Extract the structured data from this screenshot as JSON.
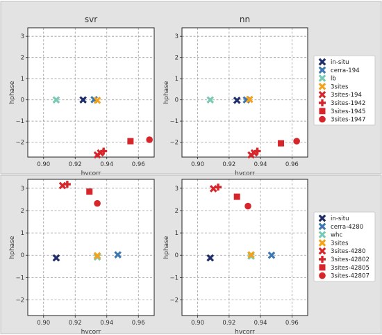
{
  "chart_data": [
    {
      "panel": "top",
      "type": "scatter",
      "xlim": [
        0.89,
        0.97
      ],
      "ylim": [
        -2.7,
        3.4
      ],
      "xticks": [
        0.9,
        0.92,
        0.94,
        0.96
      ],
      "xtick_labels": [
        "0.90",
        "0.92",
        "0.94",
        "0.96"
      ],
      "yticks": [
        -2,
        -1,
        0,
        1,
        2,
        3
      ],
      "ytick_labels": [
        "−2",
        "−1",
        "0",
        "1",
        "2",
        "3"
      ],
      "xlabel": "hvcorr",
      "ylabel": "hphase",
      "grid": true,
      "legend_position": "right",
      "legend": [
        {
          "label": "in-situ",
          "color": "#1f2d6b",
          "marker": "x"
        },
        {
          "label": "cerra-194",
          "color": "#3f78b0",
          "marker": "x"
        },
        {
          "label": "lb",
          "color": "#79c9b4",
          "marker": "x"
        },
        {
          "label": "3sites",
          "color": "#f5a21b",
          "marker": "x"
        },
        {
          "label": "3sites-194",
          "color": "#d7262b",
          "marker": "x"
        },
        {
          "label": "3sites-1942",
          "color": "#d7262b",
          "marker": "plus"
        },
        {
          "label": "3sites-1945",
          "color": "#d7262b",
          "marker": "square"
        },
        {
          "label": "3sites-1947",
          "color": "#d7262b",
          "marker": "circle"
        }
      ],
      "subplots": [
        {
          "title": "svr",
          "points": [
            {
              "series": "in-situ",
              "x": 0.925,
              "y": 0.0
            },
            {
              "series": "cerra-194",
              "x": 0.932,
              "y": 0.01
            },
            {
              "series": "lb",
              "x": 0.908,
              "y": 0.0
            },
            {
              "series": "3sites",
              "x": 0.934,
              "y": -0.02
            },
            {
              "series": "3sites-194",
              "x": 0.936,
              "y": -2.5
            },
            {
              "series": "3sites-194",
              "x": 0.934,
              "y": -2.6
            },
            {
              "series": "3sites-1942",
              "x": 0.938,
              "y": -2.42
            },
            {
              "series": "3sites-1945",
              "x": 0.955,
              "y": -1.95
            },
            {
              "series": "3sites-1947",
              "x": 0.967,
              "y": -1.88
            }
          ]
        },
        {
          "title": "nn",
          "points": [
            {
              "series": "in-situ",
              "x": 0.925,
              "y": -0.02
            },
            {
              "series": "cerra-194",
              "x": 0.931,
              "y": 0.0
            },
            {
              "series": "lb",
              "x": 0.908,
              "y": 0.0
            },
            {
              "series": "3sites",
              "x": 0.933,
              "y": 0.02
            },
            {
              "series": "3sites-194",
              "x": 0.936,
              "y": -2.5
            },
            {
              "series": "3sites-194",
              "x": 0.934,
              "y": -2.6
            },
            {
              "series": "3sites-1942",
              "x": 0.938,
              "y": -2.42
            },
            {
              "series": "3sites-1945",
              "x": 0.953,
              "y": -2.05
            },
            {
              "series": "3sites-1947",
              "x": 0.963,
              "y": -1.95
            }
          ]
        }
      ]
    },
    {
      "panel": "bottom",
      "type": "scatter",
      "xlim": [
        0.89,
        0.97
      ],
      "ylim": [
        -2.7,
        3.4
      ],
      "xticks": [
        0.9,
        0.92,
        0.94,
        0.96
      ],
      "xtick_labels": [
        "0.90",
        "0.92",
        "0.94",
        "0.96"
      ],
      "yticks": [
        -2,
        -1,
        0,
        1,
        2,
        3
      ],
      "ytick_labels": [
        "−2",
        "−1",
        "0",
        "1",
        "2",
        "3"
      ],
      "xlabel": "hvcorr",
      "ylabel": "hphase",
      "grid": true,
      "legend_position": "right",
      "legend": [
        {
          "label": "in-situ",
          "color": "#1f2d6b",
          "marker": "x"
        },
        {
          "label": "cerra-4280",
          "color": "#3f78b0",
          "marker": "x"
        },
        {
          "label": "whc",
          "color": "#79c9b4",
          "marker": "x"
        },
        {
          "label": "3sites",
          "color": "#f5a21b",
          "marker": "x"
        },
        {
          "label": "3sites-4280",
          "color": "#d7262b",
          "marker": "x"
        },
        {
          "label": "3sites-42802",
          "color": "#d7262b",
          "marker": "plus"
        },
        {
          "label": "3sites-42805",
          "color": "#d7262b",
          "marker": "square"
        },
        {
          "label": "3sites-42807",
          "color": "#d7262b",
          "marker": "circle"
        }
      ],
      "subplots": [
        {
          "title": "",
          "points": [
            {
              "series": "in-situ",
              "x": 0.908,
              "y": -0.12
            },
            {
              "series": "cerra-4280",
              "x": 0.947,
              "y": 0.02
            },
            {
              "series": "whc",
              "x": 0.934,
              "y": -0.08
            },
            {
              "series": "3sites",
              "x": 0.934,
              "y": -0.02
            },
            {
              "series": "3sites-4280",
              "x": 0.912,
              "y": 3.12
            },
            {
              "series": "3sites-42802",
              "x": 0.915,
              "y": 3.18
            },
            {
              "series": "3sites-42805",
              "x": 0.929,
              "y": 2.85
            },
            {
              "series": "3sites-42807",
              "x": 0.934,
              "y": 2.32
            }
          ]
        },
        {
          "title": "",
          "points": [
            {
              "series": "in-situ",
              "x": 0.908,
              "y": -0.12
            },
            {
              "series": "cerra-4280",
              "x": 0.947,
              "y": 0.0
            },
            {
              "series": "whc",
              "x": 0.934,
              "y": -0.04
            },
            {
              "series": "3sites",
              "x": 0.934,
              "y": 0.02
            },
            {
              "series": "3sites-4280",
              "x": 0.91,
              "y": 2.98
            },
            {
              "series": "3sites-42802",
              "x": 0.913,
              "y": 3.05
            },
            {
              "series": "3sites-42805",
              "x": 0.925,
              "y": 2.62
            },
            {
              "series": "3sites-42807",
              "x": 0.932,
              "y": 2.2
            }
          ]
        }
      ]
    }
  ]
}
